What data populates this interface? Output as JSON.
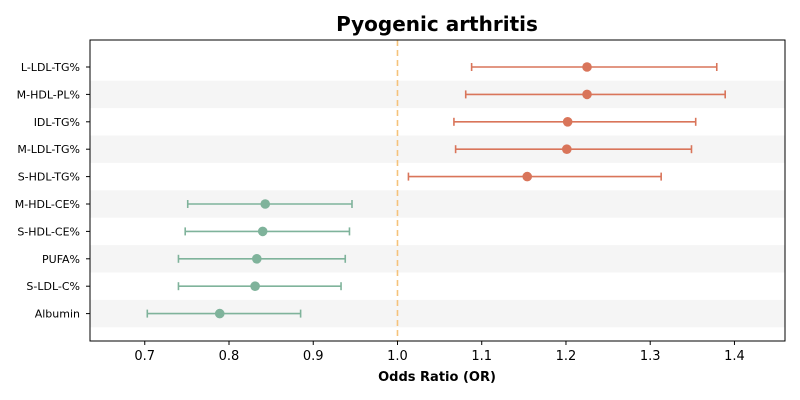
{
  "chart_data": {
    "type": "forest",
    "title": "Pyogenic arthritis",
    "xlabel": "Odds Ratio (OR)",
    "xlim": [
      0.635,
      1.46
    ],
    "xticks": [
      "0.7",
      "0.8",
      "0.9",
      "1.0",
      "1.1",
      "1.2",
      "1.3",
      "1.4"
    ],
    "reference_line": 1.0,
    "colors": {
      "risk": "#d9755a",
      "protective": "#7fb39b",
      "reference": "#f5c27a",
      "band": "#f5f5f5"
    },
    "rows": [
      {
        "label": "L-LDL-TG%",
        "or": 1.225,
        "lower": 1.088,
        "upper": 1.379
      },
      {
        "label": "M-HDL-PL%",
        "or": 1.225,
        "lower": 1.081,
        "upper": 1.389
      },
      {
        "label": "IDL-TG%",
        "or": 1.202,
        "lower": 1.067,
        "upper": 1.354
      },
      {
        "label": "M-LDL-TG%",
        "or": 1.201,
        "lower": 1.069,
        "upper": 1.349
      },
      {
        "label": "S-HDL-TG%",
        "or": 1.154,
        "lower": 1.013,
        "upper": 1.313
      },
      {
        "label": "M-HDL-CE%",
        "or": 0.843,
        "lower": 0.751,
        "upper": 0.946
      },
      {
        "label": "S-HDL-CE%",
        "or": 0.84,
        "lower": 0.748,
        "upper": 0.943
      },
      {
        "label": "PUFA%",
        "or": 0.833,
        "lower": 0.74,
        "upper": 0.938
      },
      {
        "label": "S-LDL-C%",
        "or": 0.831,
        "lower": 0.74,
        "upper": 0.933
      },
      {
        "label": "Albumin",
        "or": 0.789,
        "lower": 0.703,
        "upper": 0.885
      }
    ]
  }
}
